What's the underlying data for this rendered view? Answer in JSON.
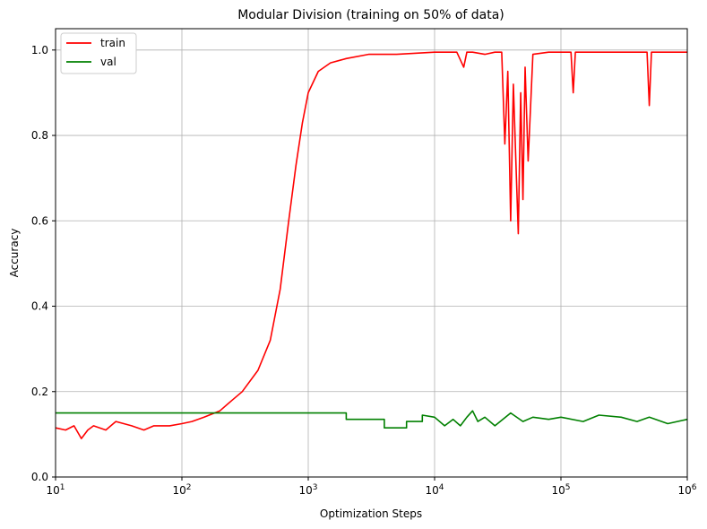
{
  "chart_data": {
    "type": "line",
    "title": "Modular Division (training on 50% of data)",
    "xlabel": "Optimization Steps",
    "ylabel": "Accuracy",
    "xscale": "log",
    "xlim": [
      10,
      1000000
    ],
    "ylim": [
      0,
      1.05
    ],
    "grid": true,
    "legend_position": "top-left",
    "x_ticks": [
      {
        "base": "10",
        "exp": "1",
        "value": 10
      },
      {
        "base": "10",
        "exp": "2",
        "value": 100
      },
      {
        "base": "10",
        "exp": "3",
        "value": 1000
      },
      {
        "base": "10",
        "exp": "4",
        "value": 10000
      },
      {
        "base": "10",
        "exp": "5",
        "value": 100000
      },
      {
        "base": "10",
        "exp": "6",
        "value": 1000000
      }
    ],
    "y_ticks": [
      "0.0",
      "0.2",
      "0.4",
      "0.6",
      "0.8",
      "1.0"
    ],
    "series": [
      {
        "name": "train",
        "color": "#ff0000",
        "x": [
          10,
          12,
          14,
          16,
          18,
          20,
          25,
          30,
          40,
          50,
          60,
          80,
          100,
          120,
          150,
          200,
          250,
          300,
          400,
          500,
          600,
          700,
          800,
          900,
          1000,
          1200,
          1500,
          2000,
          3000,
          5000,
          10000,
          15000,
          17000,
          18000,
          20000,
          25000,
          30000,
          34000,
          36000,
          38000,
          40000,
          42000,
          44000,
          46000,
          48000,
          50000,
          52000,
          55000,
          60000,
          80000,
          100000,
          120000,
          125000,
          130000,
          200000,
          300000,
          480000,
          500000,
          520000,
          700000,
          1000000
        ],
        "y": [
          0.115,
          0.11,
          0.12,
          0.09,
          0.11,
          0.12,
          0.11,
          0.13,
          0.12,
          0.11,
          0.12,
          0.12,
          0.125,
          0.13,
          0.14,
          0.155,
          0.18,
          0.2,
          0.25,
          0.32,
          0.44,
          0.6,
          0.73,
          0.83,
          0.9,
          0.95,
          0.97,
          0.98,
          0.99,
          0.99,
          0.995,
          0.995,
          0.96,
          0.995,
          0.995,
          0.99,
          0.995,
          0.995,
          0.78,
          0.95,
          0.6,
          0.92,
          0.74,
          0.57,
          0.9,
          0.65,
          0.96,
          0.74,
          0.99,
          0.995,
          0.995,
          0.995,
          0.9,
          0.995,
          0.995,
          0.995,
          0.995,
          0.87,
          0.995,
          0.995,
          0.995
        ]
      },
      {
        "name": "val",
        "color": "#008000",
        "x": [
          10,
          2000,
          2000,
          4000,
          4000,
          6000,
          6000,
          8000,
          8000,
          10000,
          12000,
          14000,
          16000,
          18000,
          20000,
          22000,
          25000,
          30000,
          40000,
          50000,
          60000,
          80000,
          100000,
          150000,
          200000,
          300000,
          400000,
          500000,
          700000,
          1000000
        ],
        "y": [
          0.15,
          0.15,
          0.135,
          0.135,
          0.115,
          0.115,
          0.13,
          0.13,
          0.145,
          0.14,
          0.12,
          0.135,
          0.12,
          0.14,
          0.155,
          0.13,
          0.14,
          0.12,
          0.15,
          0.13,
          0.14,
          0.135,
          0.14,
          0.13,
          0.145,
          0.14,
          0.13,
          0.14,
          0.125,
          0.135
        ]
      }
    ]
  }
}
